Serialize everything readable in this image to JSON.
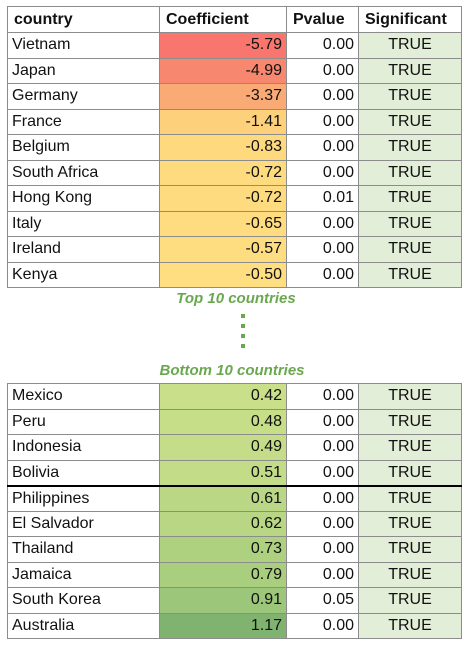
{
  "headers": {
    "country": "country",
    "coef": "Coefficient",
    "pvalue": "Pvalue",
    "sig": "Significant"
  },
  "captions": {
    "top": "Top 10 countries",
    "bottom": "Bottom 10 countries"
  },
  "top_rows": [
    {
      "country": "Vietnam",
      "coef": "-5.79",
      "pvalue": "0.00",
      "sig": "TRUE",
      "color": "#f8766d"
    },
    {
      "country": "Japan",
      "coef": "-4.99",
      "pvalue": "0.00",
      "sig": "TRUE",
      "color": "#f8876f"
    },
    {
      "country": "Germany",
      "coef": "-3.37",
      "pvalue": "0.00",
      "sig": "TRUE",
      "color": "#faab75"
    },
    {
      "country": "France",
      "coef": "-1.41",
      "pvalue": "0.00",
      "sig": "TRUE",
      "color": "#fdd07c"
    },
    {
      "country": "Belgium",
      "coef": "-0.83",
      "pvalue": "0.00",
      "sig": "TRUE",
      "color": "#fed97e"
    },
    {
      "country": "South Africa",
      "coef": "-0.72",
      "pvalue": "0.00",
      "sig": "TRUE",
      "color": "#fedb7f"
    },
    {
      "country": "Hong Kong",
      "coef": "-0.72",
      "pvalue": "0.01",
      "sig": "TRUE",
      "color": "#fedb7f"
    },
    {
      "country": "Italy",
      "coef": "-0.65",
      "pvalue": "0.00",
      "sig": "TRUE",
      "color": "#fedc7f"
    },
    {
      "country": "Ireland",
      "coef": "-0.57",
      "pvalue": "0.00",
      "sig": "TRUE",
      "color": "#fedd80"
    },
    {
      "country": "Kenya",
      "coef": "-0.50",
      "pvalue": "0.00",
      "sig": "TRUE",
      "color": "#fede80"
    }
  ],
  "bottom_rows": [
    {
      "country": "Mexico",
      "coef": "0.42",
      "pvalue": "0.00",
      "sig": "TRUE",
      "color": "#c9df89"
    },
    {
      "country": "Peru",
      "coef": "0.48",
      "pvalue": "0.00",
      "sig": "TRUE",
      "color": "#c6de88"
    },
    {
      "country": "Indonesia",
      "coef": "0.49",
      "pvalue": "0.00",
      "sig": "TRUE",
      "color": "#c5dd88"
    },
    {
      "country": "Bolivia",
      "coef": "0.51",
      "pvalue": "0.00",
      "sig": "TRUE",
      "color": "#c3dc87"
    },
    {
      "country": "Philippines",
      "coef": "0.61",
      "pvalue": "0.00",
      "sig": "TRUE",
      "color": "#b9d784"
    },
    {
      "country": "El Salvador",
      "coef": "0.62",
      "pvalue": "0.00",
      "sig": "TRUE",
      "color": "#b8d684"
    },
    {
      "country": "Thailand",
      "coef": "0.73",
      "pvalue": "0.00",
      "sig": "TRUE",
      "color": "#aed180"
    },
    {
      "country": "Jamaica",
      "coef": "0.79",
      "pvalue": "0.00",
      "sig": "TRUE",
      "color": "#a8ce7e"
    },
    {
      "country": "South Korea",
      "coef": "0.91",
      "pvalue": "0.05",
      "sig": "TRUE",
      "color": "#9cc77a"
    },
    {
      "country": "Australia",
      "coef": "1.17",
      "pvalue": "0.00",
      "sig": "TRUE",
      "color": "#7fb36f"
    }
  ]
}
